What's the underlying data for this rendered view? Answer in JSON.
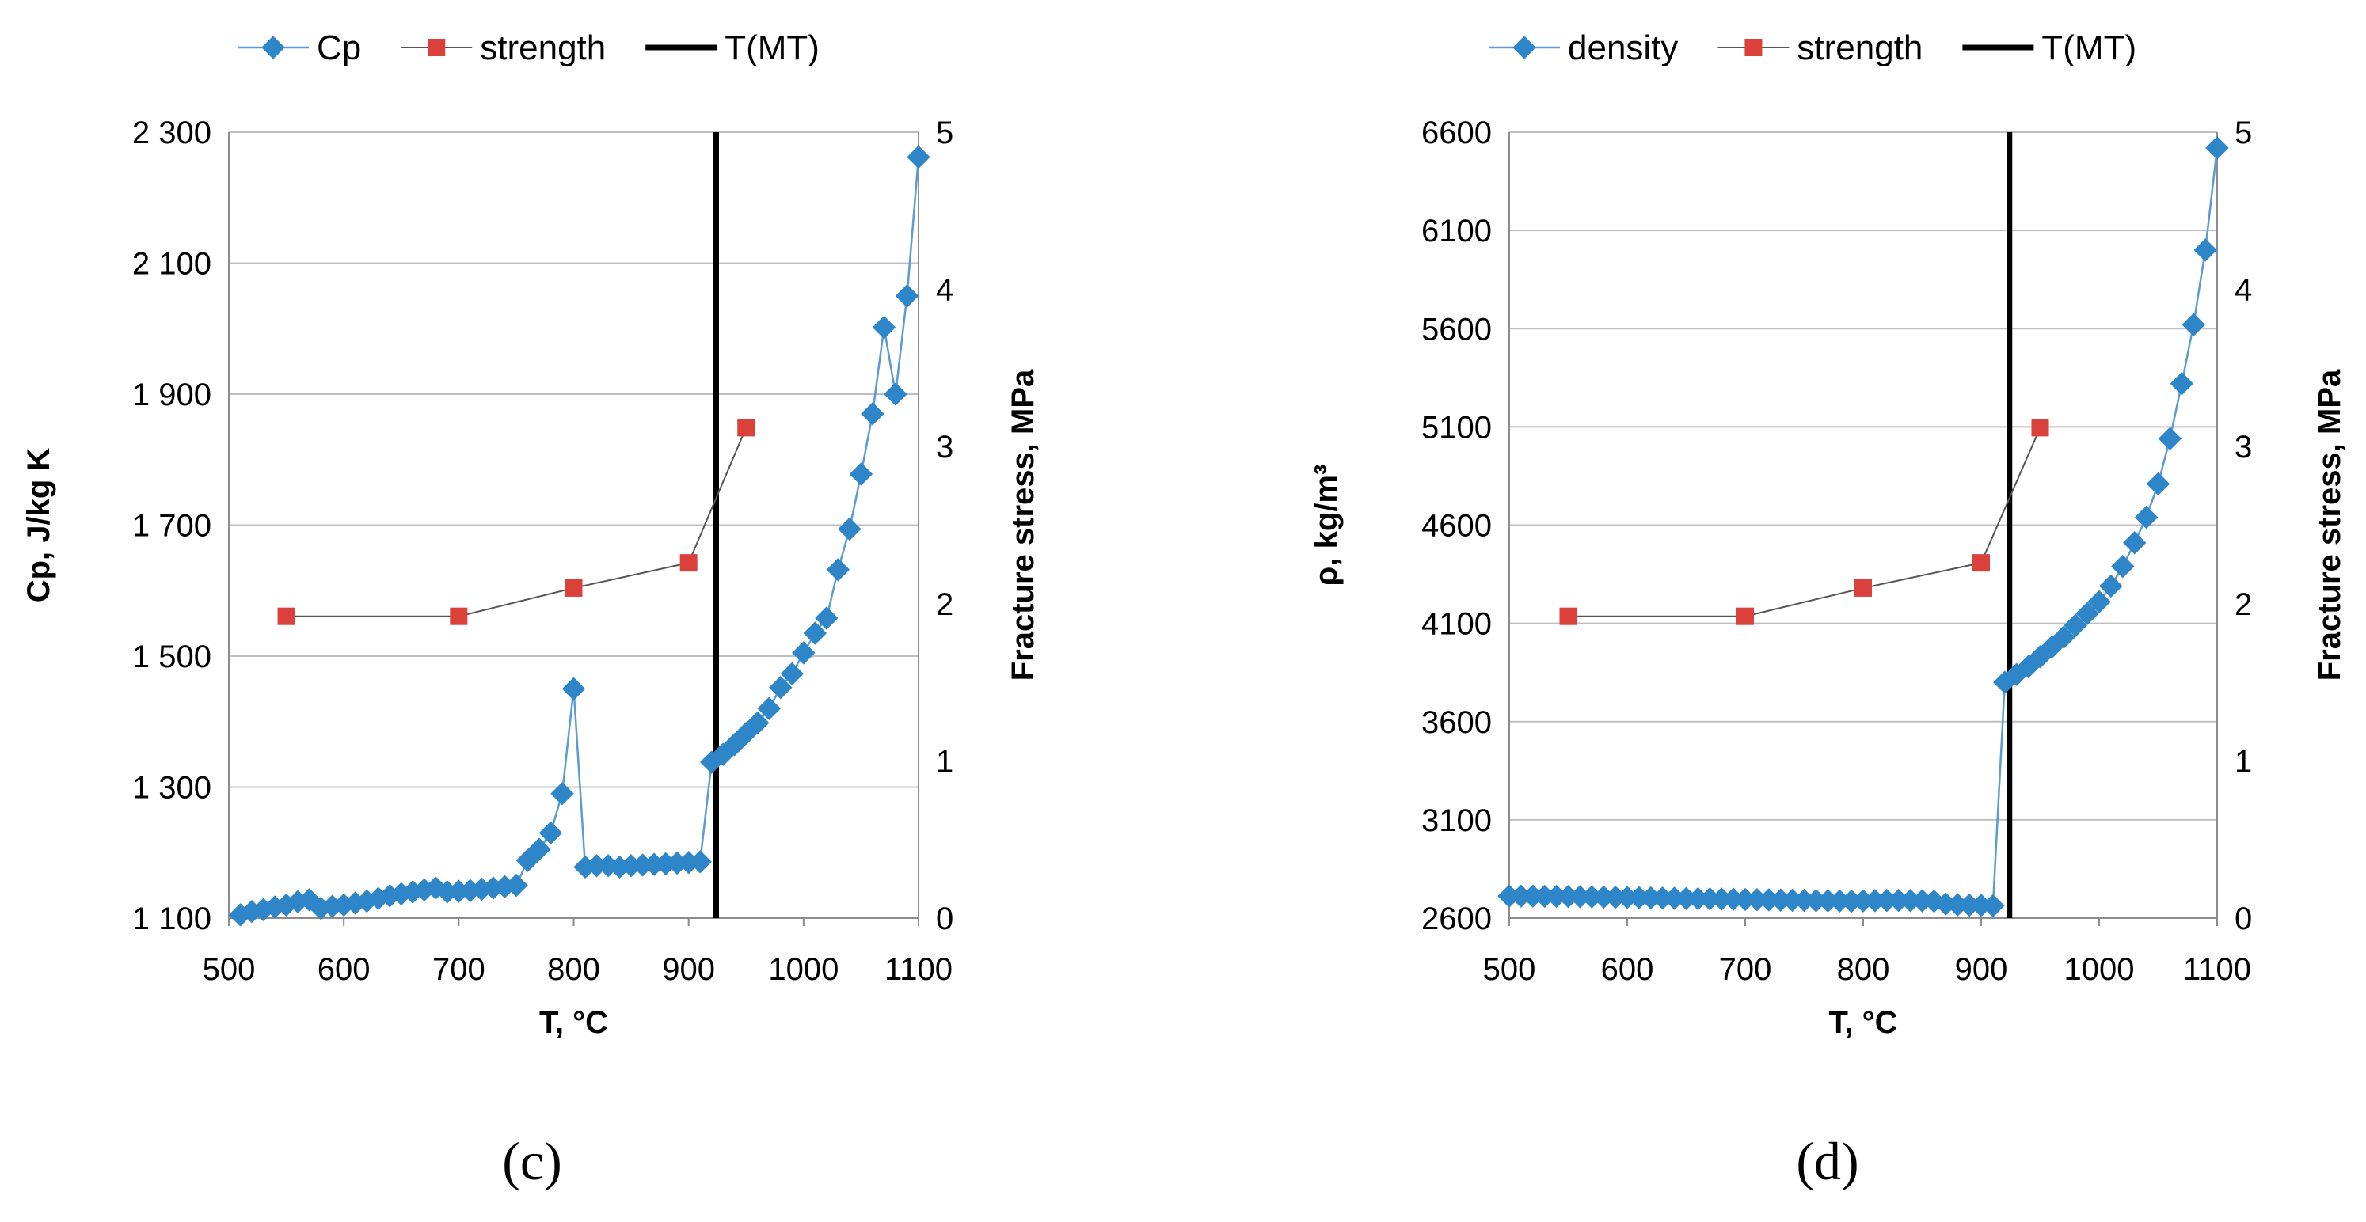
{
  "colors": {
    "series_primary": "#2E86C9",
    "series_primary_line": "#5B9BD5",
    "strength_marker": "#D9413A",
    "strength_line": "#555555",
    "vline": "#000000",
    "grid": "#BFBFBF",
    "axis": "#8C8C8C"
  },
  "chart_data": [
    {
      "type": "line",
      "panel_label": "(c)",
      "xlabel": "T, °C",
      "ylabel": "Cp, J/kg K",
      "y2label": "Fracture stress, MPa",
      "xlim": [
        500,
        1100
      ],
      "ylim": [
        1100,
        2300
      ],
      "y2lim": [
        0,
        5
      ],
      "x_ticks": [
        "500",
        "600",
        "700",
        "800",
        "900",
        "1000",
        "1100"
      ],
      "y_ticks": [
        "1 100",
        "1 300",
        "1 500",
        "1 700",
        "1 900",
        "2 100",
        "2 300"
      ],
      "y2_ticks": [
        "0",
        "1",
        "2",
        "3",
        "4",
        "5"
      ],
      "legend": [
        "Cp",
        "strength",
        "T(MT)"
      ],
      "series": [
        {
          "name": "Cp",
          "axis": "left",
          "x": [
            510,
            520,
            530,
            540,
            550,
            560,
            570,
            580,
            590,
            600,
            610,
            620,
            630,
            640,
            650,
            660,
            670,
            680,
            690,
            700,
            710,
            720,
            730,
            740,
            750,
            760,
            770,
            780,
            790,
            800,
            810,
            820,
            830,
            840,
            850,
            860,
            870,
            880,
            890,
            900,
            910,
            920,
            930,
            940,
            950,
            960,
            970,
            980,
            990,
            1000,
            1010,
            1020,
            1030,
            1040,
            1050,
            1060,
            1070,
            1080,
            1090,
            1100
          ],
          "y": [
            1105,
            1110,
            1113,
            1117,
            1120,
            1125,
            1128,
            1115,
            1118,
            1120,
            1123,
            1126,
            1130,
            1134,
            1137,
            1140,
            1143,
            1146,
            1140,
            1141,
            1142,
            1144,
            1146,
            1148,
            1150,
            1188,
            1205,
            1230,
            1290,
            1450,
            1178,
            1180,
            1180,
            1178,
            1180,
            1181,
            1182,
            1183,
            1184,
            1185,
            1186,
            1338,
            1350,
            1365,
            1382,
            1398,
            1420,
            1452,
            1473,
            1505,
            1535,
            1558,
            1632,
            1694,
            1778,
            1870,
            2002,
            1900,
            2050,
            2262
          ]
        },
        {
          "name": "strength",
          "axis": "right",
          "x": [
            550,
            700,
            800,
            900,
            950
          ],
          "y": [
            1.92,
            1.92,
            2.1,
            2.26,
            3.12
          ]
        }
      ],
      "vline_x": 924
    },
    {
      "type": "line",
      "panel_label": "(d)",
      "xlabel": "T, °C",
      "ylabel": "ρ, kg/m³",
      "y2label": "Fracture stress, MPa",
      "xlim": [
        500,
        1100
      ],
      "ylim": [
        2600,
        6600
      ],
      "y2lim": [
        0,
        5
      ],
      "x_ticks": [
        "500",
        "600",
        "700",
        "800",
        "900",
        "1000",
        "1100"
      ],
      "y_ticks": [
        "2600",
        "3100",
        "3600",
        "4100",
        "4600",
        "5100",
        "5600",
        "6100",
        "6600"
      ],
      "y2_ticks": [
        "0",
        "1",
        "2",
        "3",
        "4",
        "5"
      ],
      "legend": [
        "density",
        "strength",
        "T(MT)"
      ],
      "series": [
        {
          "name": "density",
          "axis": "left",
          "x": [
            500,
            510,
            520,
            530,
            540,
            550,
            560,
            570,
            580,
            590,
            600,
            610,
            620,
            630,
            640,
            650,
            660,
            670,
            680,
            690,
            700,
            710,
            720,
            730,
            740,
            750,
            760,
            770,
            780,
            790,
            800,
            810,
            820,
            830,
            840,
            850,
            860,
            870,
            880,
            890,
            900,
            910,
            920,
            930,
            940,
            950,
            960,
            970,
            980,
            990,
            1000,
            1010,
            1020,
            1030,
            1040,
            1050,
            1060,
            1070,
            1080,
            1090,
            1100
          ],
          "y": [
            2712,
            2712,
            2712,
            2711,
            2711,
            2710,
            2709,
            2708,
            2707,
            2706,
            2705,
            2704,
            2703,
            2702,
            2701,
            2700,
            2699,
            2698,
            2697,
            2696,
            2695,
            2694,
            2693,
            2692,
            2691,
            2690,
            2689,
            2688,
            2687,
            2686,
            2688,
            2689,
            2690,
            2690,
            2689,
            2688,
            2686,
            2672,
            2668,
            2666,
            2665,
            2663,
            3800,
            3840,
            3880,
            3930,
            3980,
            4030,
            4090,
            4150,
            4210,
            4290,
            4390,
            4510,
            4640,
            4810,
            5040,
            5320,
            5620,
            6000,
            6520
          ]
        },
        {
          "name": "strength",
          "axis": "right",
          "x": [
            550,
            700,
            800,
            900,
            950
          ],
          "y": [
            1.92,
            1.92,
            2.1,
            2.26,
            3.12
          ]
        }
      ],
      "vline_x": 924
    }
  ]
}
